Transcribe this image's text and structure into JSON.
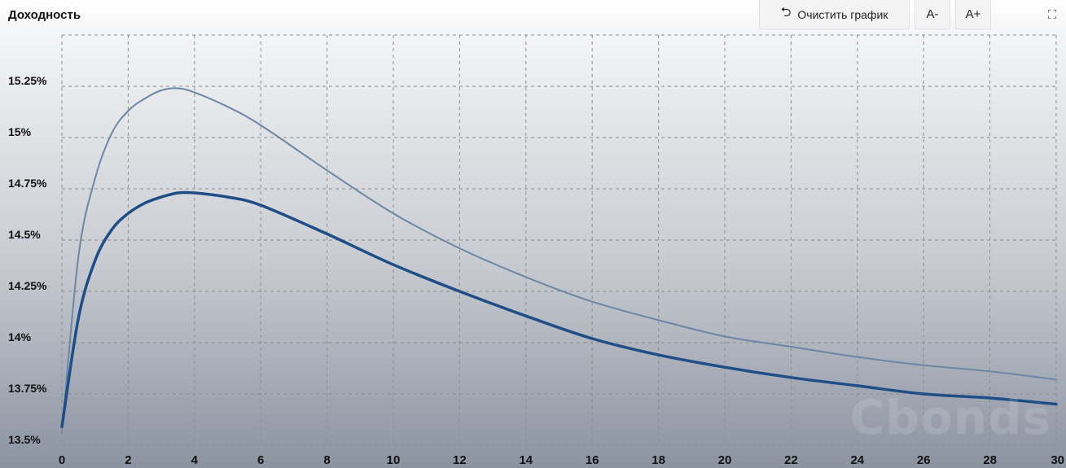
{
  "toolbar": {
    "clear_label": "Очистить график",
    "font_decrease_label": "A-",
    "font_increase_label": "A+"
  },
  "watermark": "Cbonds",
  "chart_data": {
    "type": "line",
    "title": "",
    "ylabel": "Доходность",
    "xlabel": "",
    "xlim": [
      0,
      30
    ],
    "ylim": [
      13.5,
      15.5
    ],
    "grid": true,
    "x_ticks": [
      0,
      2,
      4,
      6,
      8,
      10,
      12,
      14,
      16,
      18,
      20,
      22,
      24,
      26,
      28,
      30
    ],
    "y_ticks": [
      {
        "value": 13.5,
        "label": "13.5%"
      },
      {
        "value": 13.75,
        "label": "13.75%"
      },
      {
        "value": 14.0,
        "label": "14%"
      },
      {
        "value": 14.25,
        "label": "14.25%"
      },
      {
        "value": 14.5,
        "label": "14.5%"
      },
      {
        "value": 14.75,
        "label": "14.75%"
      },
      {
        "value": 15.0,
        "label": "15%"
      },
      {
        "value": 15.25,
        "label": "15.25%"
      }
    ],
    "series": [
      {
        "color": "#6d86a5",
        "x": [
          0,
          0.5,
          1,
          1.5,
          2,
          2.5,
          3,
          3.5,
          4,
          5,
          6,
          8,
          10,
          12,
          14,
          16,
          18,
          20,
          22,
          24,
          26,
          28,
          30
        ],
        "values": [
          13.56,
          14.42,
          14.8,
          15.02,
          15.13,
          15.19,
          15.23,
          15.24,
          15.22,
          15.15,
          15.06,
          14.84,
          14.63,
          14.46,
          14.32,
          14.2,
          14.11,
          14.03,
          13.98,
          13.93,
          13.89,
          13.86,
          13.82
        ]
      },
      {
        "color": "#1f4e86",
        "x": [
          0,
          0.5,
          1,
          1.5,
          2,
          2.5,
          3,
          3.5,
          4,
          5,
          6,
          8,
          10,
          12,
          14,
          16,
          18,
          20,
          22,
          24,
          26,
          28,
          30
        ],
        "values": [
          13.59,
          14.12,
          14.4,
          14.55,
          14.63,
          14.68,
          14.71,
          14.73,
          14.73,
          14.71,
          14.67,
          14.53,
          14.38,
          14.25,
          14.13,
          14.02,
          13.94,
          13.88,
          13.83,
          13.79,
          13.75,
          13.73,
          13.7
        ]
      }
    ]
  }
}
